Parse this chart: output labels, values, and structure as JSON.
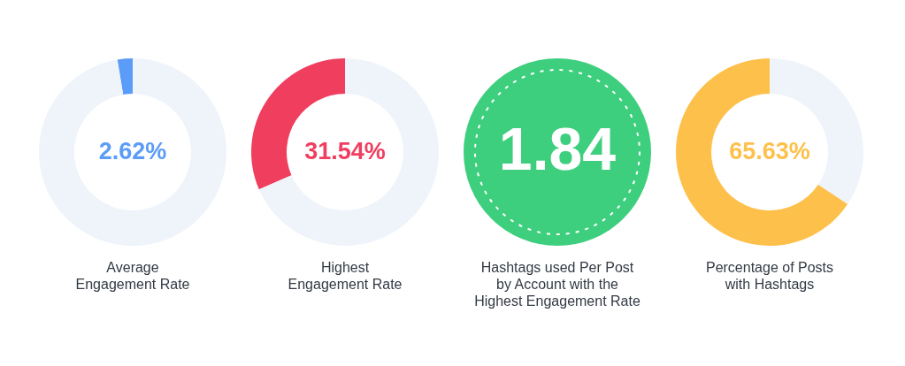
{
  "chart_data": [
    {
      "type": "donut",
      "title": "Average\nEngagement Rate",
      "categories": [
        null,
        null
      ],
      "values": [
        2.62,
        97.38
      ],
      "colors": [
        "#5b9cf8",
        "#eef4fa"
      ],
      "value_labels": [
        "2.62%",
        null
      ]
    },
    {
      "type": "donut",
      "title": "Highest\nEngagement Rate",
      "categories": [
        null,
        null
      ],
      "values": [
        31.54,
        68.46
      ],
      "colors": [
        "#f03e5f",
        "#eef4fa"
      ],
      "value_labels": [
        "31.54%",
        null
      ]
    },
    {
      "type": "other",
      "title": "Hashtags used Per Post\nby Account with the\nHighest Engagement Rate",
      "annotations": [
        "1.84"
      ],
      "colors": [
        "#3ecf7e"
      ]
    },
    {
      "type": "donut",
      "title": "Percentage of Posts\nwith Hashtags",
      "categories": [
        null,
        null
      ],
      "values": [
        65.63,
        34.37
      ],
      "colors": [
        "#fdc04a",
        "#eef4fa"
      ],
      "value_labels": [
        "65.63%",
        null
      ]
    }
  ]
}
